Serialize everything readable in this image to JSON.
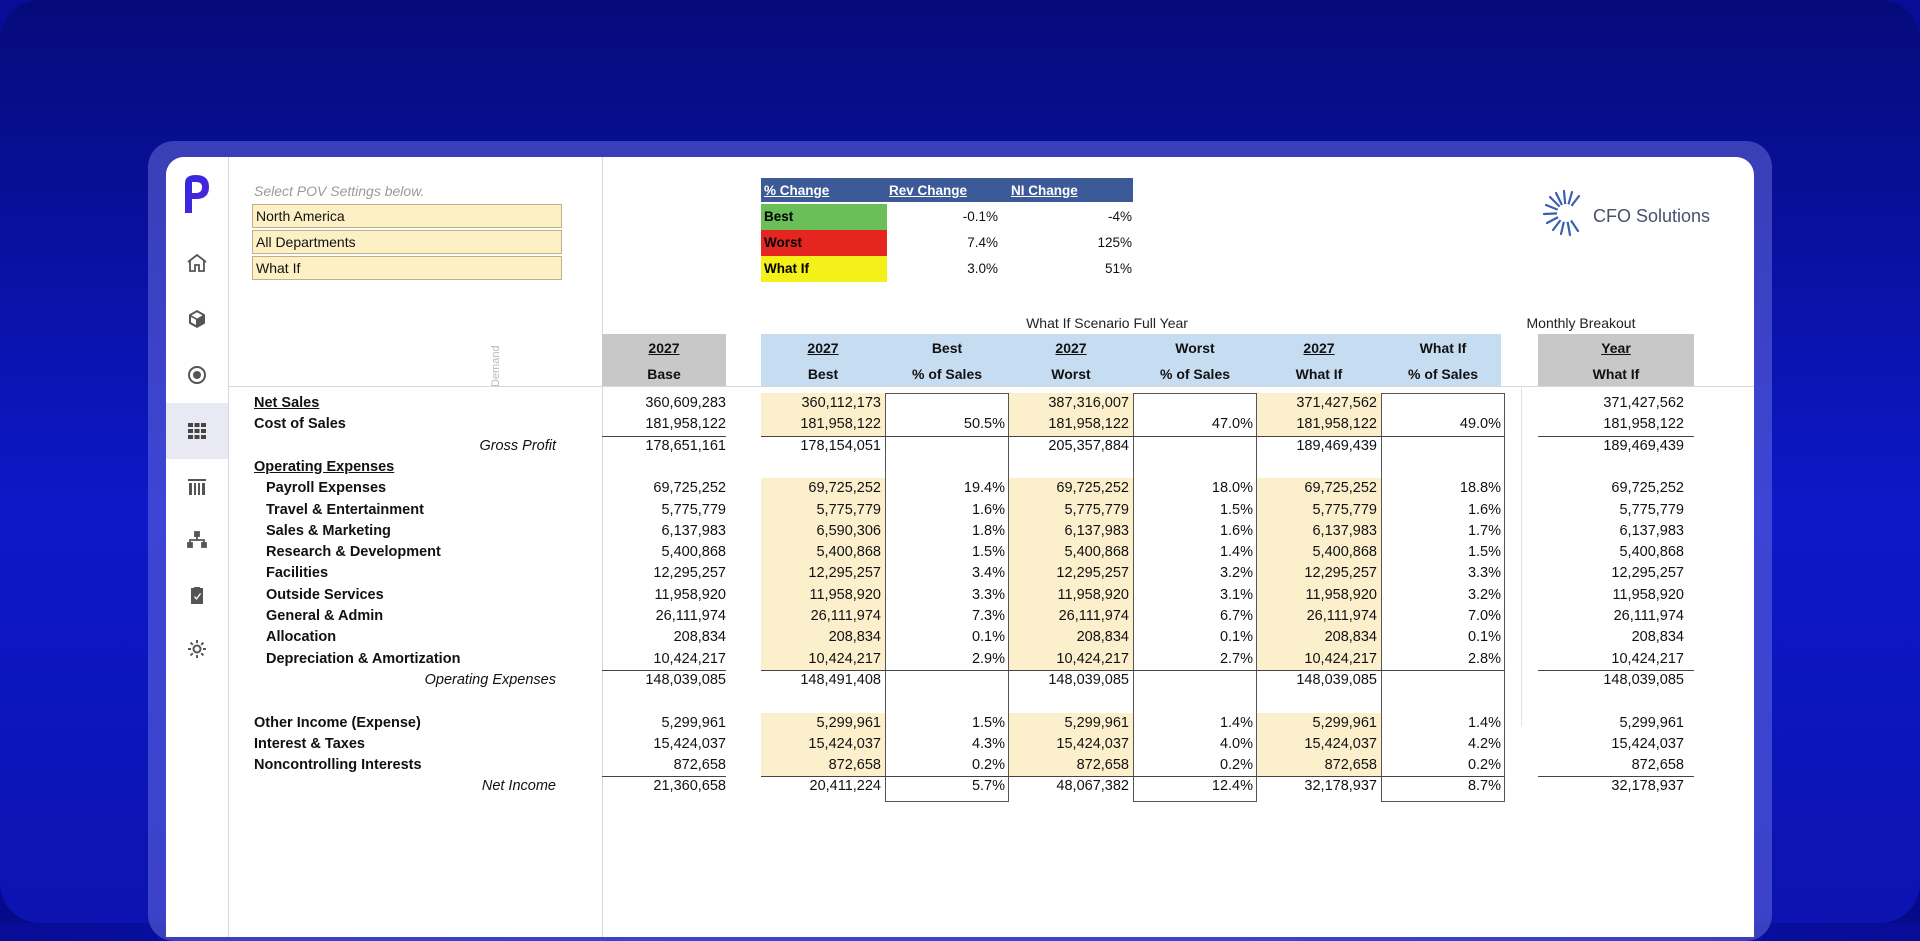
{
  "pov": {
    "hint": "Select POV Settings below.",
    "region": "North America",
    "department": "All Departments",
    "scenario": "What If"
  },
  "change_table": {
    "headers": [
      "% Change",
      "Rev Change",
      "NI Change"
    ],
    "rows": [
      {
        "label": "Best",
        "rev": "-0.1%",
        "ni": "-4%",
        "color": "#6bbf59"
      },
      {
        "label": "Worst",
        "rev": "7.4%",
        "ni": "125%",
        "color": "#e52520"
      },
      {
        "label": "What If",
        "rev": "3.0%",
        "ni": "51%",
        "color": "#f4f01a"
      }
    ]
  },
  "brand": {
    "name": "CFO Solutions"
  },
  "titles": {
    "scenario": "What If Scenario Full Year",
    "monthly": "Monthly Breakout"
  },
  "columns": {
    "base": {
      "year": "2027",
      "name": "Base"
    },
    "best": {
      "year": "2027",
      "name": "Best"
    },
    "best_pct": {
      "top": "Best",
      "bottom": "% of Sales"
    },
    "worst": {
      "year": "2027",
      "name": "Worst"
    },
    "worst_pct": {
      "top": "Worst",
      "bottom": "% of Sales"
    },
    "whatif": {
      "year": "2027",
      "name": "What If"
    },
    "whatif_pct": {
      "top": "What If",
      "bottom": "% of Sales"
    },
    "monthly": {
      "year": "Year",
      "name": "What If"
    }
  },
  "side_label": "Demand",
  "rows": [
    {
      "label": "Net Sales",
      "kind": "bold-u",
      "base": "360,609,283",
      "best": "360,112,173",
      "best_pct": "",
      "worst": "387,316,007",
      "worst_pct": "",
      "whatif": "371,427,562",
      "whatif_pct": "",
      "monthly": "371,427,562"
    },
    {
      "label": "Cost of Sales",
      "kind": "bold",
      "base": "181,958,122",
      "best": "181,958,122",
      "best_pct": "50.5%",
      "worst": "181,958,122",
      "worst_pct": "47.0%",
      "whatif": "181,958,122",
      "whatif_pct": "49.0%",
      "monthly": "181,958,122"
    },
    {
      "label": "Gross Profit",
      "kind": "total",
      "base": "178,651,161",
      "best": "178,154,051",
      "best_pct": "",
      "worst": "205,357,884",
      "worst_pct": "",
      "whatif": "189,469,439",
      "whatif_pct": "",
      "monthly": "189,469,439"
    },
    {
      "label": "Operating Expenses",
      "kind": "section",
      "base": "",
      "best": "",
      "best_pct": "",
      "worst": "",
      "worst_pct": "",
      "whatif": "",
      "whatif_pct": "",
      "monthly": ""
    },
    {
      "label": "Payroll Expenses",
      "kind": "sub",
      "base": "69,725,252",
      "best": "69,725,252",
      "best_pct": "19.4%",
      "worst": "69,725,252",
      "worst_pct": "18.0%",
      "whatif": "69,725,252",
      "whatif_pct": "18.8%",
      "monthly": "69,725,252"
    },
    {
      "label": "Travel & Entertainment",
      "kind": "sub",
      "base": "5,775,779",
      "best": "5,775,779",
      "best_pct": "1.6%",
      "worst": "5,775,779",
      "worst_pct": "1.5%",
      "whatif": "5,775,779",
      "whatif_pct": "1.6%",
      "monthly": "5,775,779"
    },
    {
      "label": "Sales & Marketing",
      "kind": "sub",
      "base": "6,137,983",
      "best": "6,590,306",
      "best_pct": "1.8%",
      "worst": "6,137,983",
      "worst_pct": "1.6%",
      "whatif": "6,137,983",
      "whatif_pct": "1.7%",
      "monthly": "6,137,983"
    },
    {
      "label": "Research & Development",
      "kind": "sub",
      "base": "5,400,868",
      "best": "5,400,868",
      "best_pct": "1.5%",
      "worst": "5,400,868",
      "worst_pct": "1.4%",
      "whatif": "5,400,868",
      "whatif_pct": "1.5%",
      "monthly": "5,400,868"
    },
    {
      "label": "Facilities",
      "kind": "sub",
      "base": "12,295,257",
      "best": "12,295,257",
      "best_pct": "3.4%",
      "worst": "12,295,257",
      "worst_pct": "3.2%",
      "whatif": "12,295,257",
      "whatif_pct": "3.3%",
      "monthly": "12,295,257"
    },
    {
      "label": "Outside Services",
      "kind": "sub",
      "base": "11,958,920",
      "best": "11,958,920",
      "best_pct": "3.3%",
      "worst": "11,958,920",
      "worst_pct": "3.1%",
      "whatif": "11,958,920",
      "whatif_pct": "3.2%",
      "monthly": "11,958,920"
    },
    {
      "label": "General & Admin",
      "kind": "sub",
      "base": "26,111,974",
      "best": "26,111,974",
      "best_pct": "7.3%",
      "worst": "26,111,974",
      "worst_pct": "6.7%",
      "whatif": "26,111,974",
      "whatif_pct": "7.0%",
      "monthly": "26,111,974"
    },
    {
      "label": "Allocation",
      "kind": "sub",
      "base": "208,834",
      "best": "208,834",
      "best_pct": "0.1%",
      "worst": "208,834",
      "worst_pct": "0.1%",
      "whatif": "208,834",
      "whatif_pct": "0.1%",
      "monthly": "208,834"
    },
    {
      "label": "Depreciation & Amortization",
      "kind": "sub",
      "base": "10,424,217",
      "best": "10,424,217",
      "best_pct": "2.9%",
      "worst": "10,424,217",
      "worst_pct": "2.7%",
      "whatif": "10,424,217",
      "whatif_pct": "2.8%",
      "monthly": "10,424,217"
    },
    {
      "label": "Operating Expenses",
      "kind": "total",
      "base": "148,039,085",
      "best": "148,491,408",
      "best_pct": "",
      "worst": "148,039,085",
      "worst_pct": "",
      "whatif": "148,039,085",
      "whatif_pct": "",
      "monthly": "148,039,085"
    },
    {
      "label": "",
      "kind": "blank",
      "base": "",
      "best": "",
      "best_pct": "",
      "worst": "",
      "worst_pct": "",
      "whatif": "",
      "whatif_pct": "",
      "monthly": ""
    },
    {
      "label": "Other Income (Expense)",
      "kind": "bold",
      "base": "5,299,961",
      "best": "5,299,961",
      "best_pct": "1.5%",
      "worst": "5,299,961",
      "worst_pct": "1.4%",
      "whatif": "5,299,961",
      "whatif_pct": "1.4%",
      "monthly": "5,299,961"
    },
    {
      "label": "Interest & Taxes",
      "kind": "bold",
      "base": "15,424,037",
      "best": "15,424,037",
      "best_pct": "4.3%",
      "worst": "15,424,037",
      "worst_pct": "4.0%",
      "whatif": "15,424,037",
      "whatif_pct": "4.2%",
      "monthly": "15,424,037"
    },
    {
      "label": "Noncontrolling Interests",
      "kind": "bold",
      "base": "872,658",
      "best": "872,658",
      "best_pct": "0.2%",
      "worst": "872,658",
      "worst_pct": "0.2%",
      "whatif": "872,658",
      "whatif_pct": "0.2%",
      "monthly": "872,658"
    },
    {
      "label": "Net Income",
      "kind": "total",
      "base": "21,360,658",
      "best": "20,411,224",
      "best_pct": "5.7%",
      "worst": "48,067,382",
      "worst_pct": "12.4%",
      "whatif": "32,178,937",
      "whatif_pct": "8.7%",
      "monthly": "32,178,937"
    }
  ],
  "nav": [
    "home-icon",
    "cube-icon",
    "target-icon",
    "grid-icon",
    "building-icon",
    "hierarchy-icon",
    "clipboard-icon",
    "gear-icon"
  ]
}
